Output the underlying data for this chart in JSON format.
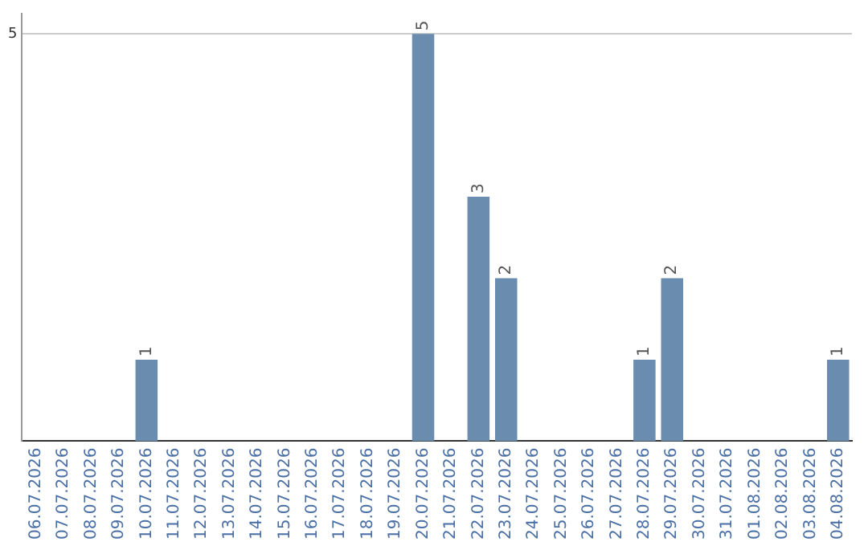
{
  "chart_data": {
    "type": "bar",
    "categories": [
      "06.07.2026",
      "07.07.2026",
      "08.07.2026",
      "09.07.2026",
      "10.07.2026",
      "11.07.2026",
      "12.07.2026",
      "13.07.2026",
      "14.07.2026",
      "15.07.2026",
      "16.07.2026",
      "17.07.2026",
      "18.07.2026",
      "19.07.2026",
      "20.07.2026",
      "21.07.2026",
      "22.07.2026",
      "23.07.2026",
      "24.07.2026",
      "25.07.2026",
      "26.07.2026",
      "27.07.2026",
      "28.07.2026",
      "29.07.2026",
      "30.07.2026",
      "31.07.2026",
      "01.08.2026",
      "02.08.2026",
      "03.08.2026",
      "04.08.2026"
    ],
    "values": [
      0,
      0,
      0,
      0,
      1,
      0,
      0,
      0,
      0,
      0,
      0,
      0,
      0,
      0,
      5,
      0,
      3,
      2,
      0,
      0,
      0,
      0,
      1,
      2,
      0,
      0,
      0,
      0,
      0,
      1
    ],
    "value_labels": [
      null,
      null,
      null,
      null,
      "1",
      null,
      null,
      null,
      null,
      null,
      null,
      null,
      null,
      null,
      "5",
      null,
      "3",
      "2",
      null,
      null,
      null,
      null,
      "1",
      "2",
      null,
      null,
      null,
      null,
      null,
      "1"
    ],
    "color": "#6a8caf",
    "ylim": [
      0,
      5.25
    ],
    "yticks": [
      5
    ],
    "grid": "y",
    "legend": false
  }
}
